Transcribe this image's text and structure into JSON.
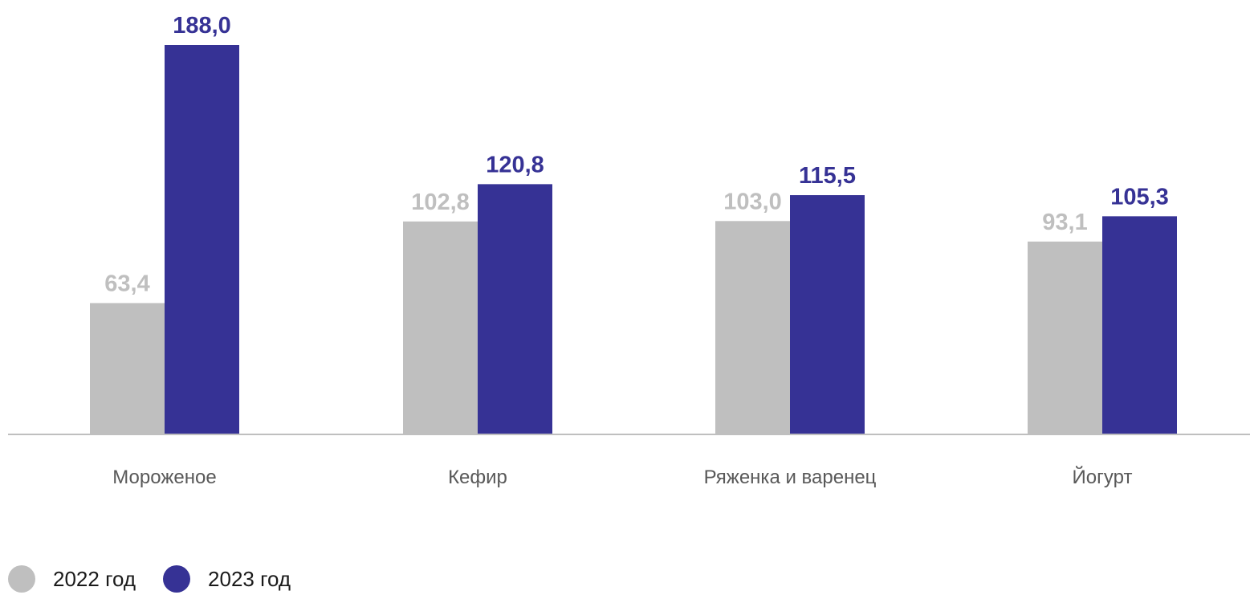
{
  "chart_data": {
    "type": "bar",
    "categories": [
      "Мороженое",
      "Кефир",
      "Ряженка и варенец",
      "Йогурт"
    ],
    "series": [
      {
        "name": "2022 год",
        "color": "#bfbfbf",
        "values": [
          63.4,
          102.8,
          103.0,
          93.1
        ],
        "labels": [
          "63,4",
          "102,8",
          "103,0",
          "93,1"
        ]
      },
      {
        "name": "2023 год",
        "color": "#363295",
        "values": [
          188.0,
          120.8,
          115.5,
          105.3
        ],
        "labels": [
          "188,0",
          "120,8",
          "115,5",
          "105,3"
        ]
      }
    ],
    "ylim": [
      0,
      188
    ],
    "grid": false,
    "legend_position": "bottom-left"
  }
}
